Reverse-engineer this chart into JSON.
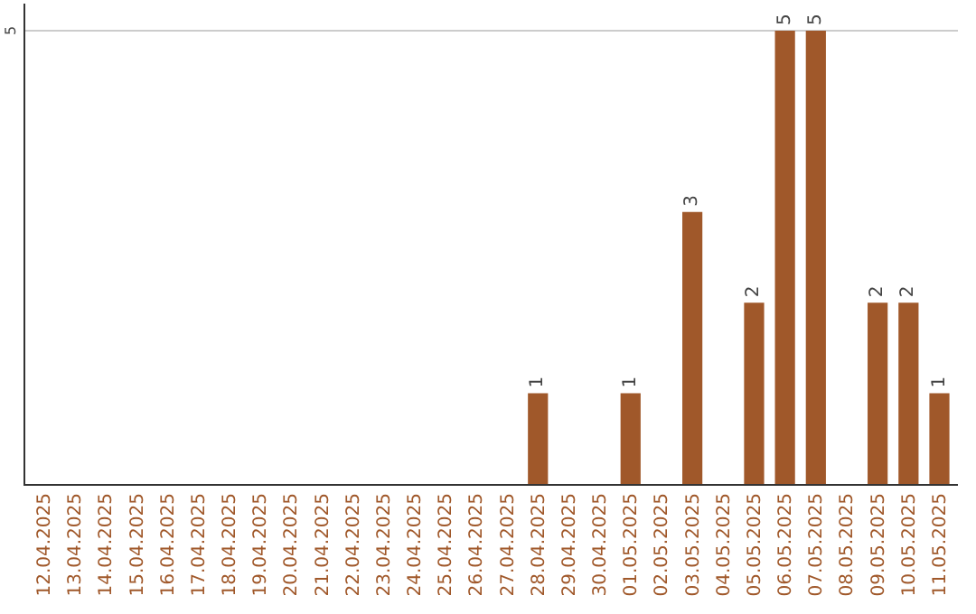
{
  "chart_data": {
    "type": "bar",
    "categories": [
      "12.04.2025",
      "13.04.2025",
      "14.04.2025",
      "15.04.2025",
      "16.04.2025",
      "17.04.2025",
      "18.04.2025",
      "19.04.2025",
      "20.04.2025",
      "21.04.2025",
      "22.04.2025",
      "23.04.2025",
      "24.04.2025",
      "25.04.2025",
      "26.04.2025",
      "27.04.2025",
      "28.04.2025",
      "29.04.2025",
      "30.04.2025",
      "01.05.2025",
      "02.05.2025",
      "03.05.2025",
      "04.05.2025",
      "05.05.2025",
      "06.05.2025",
      "07.05.2025",
      "08.05.2025",
      "09.05.2025",
      "10.05.2025",
      "11.05.2025"
    ],
    "values": [
      null,
      null,
      null,
      null,
      null,
      null,
      null,
      null,
      null,
      null,
      null,
      null,
      null,
      null,
      null,
      null,
      1,
      null,
      null,
      1,
      null,
      3,
      null,
      2,
      5,
      5,
      null,
      2,
      2,
      1
    ],
    "data_labels": true,
    "ylim": [
      0,
      5.3
    ],
    "color": "#a0582a",
    "ref_lines": [
      {
        "axis": "y",
        "value": 5,
        "label": "5",
        "color": "#cccccc"
      }
    ]
  }
}
